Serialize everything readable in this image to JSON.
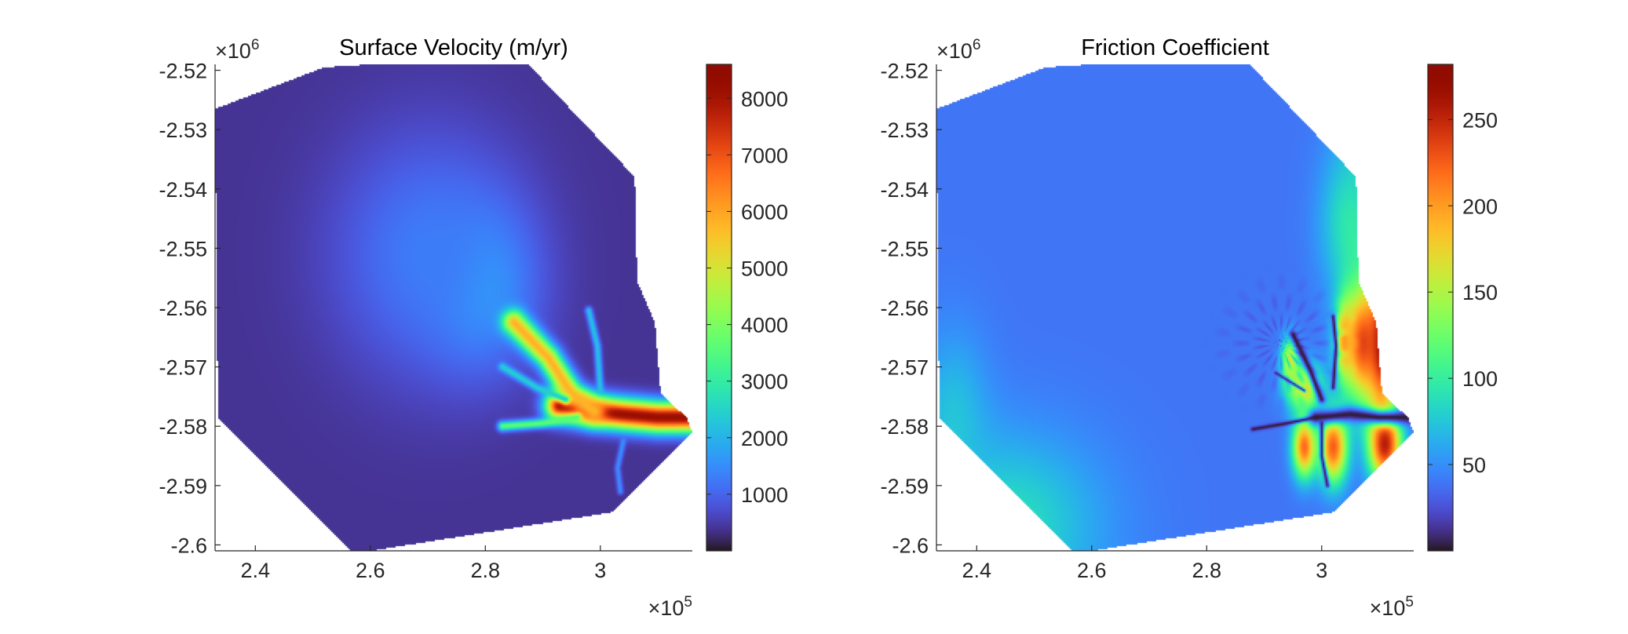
{
  "chart_data": [
    {
      "type": "heatmap",
      "title": "Surface Velocity (m/yr)",
      "x_multiplier_label": "×10",
      "x_multiplier_exponent": "5",
      "y_multiplier_label": "×10",
      "y_multiplier_exponent": "6",
      "xlim": [
        2.33,
        3.16
      ],
      "ylim": [
        -2.601,
        -2.519
      ],
      "xticks": [
        2.4,
        2.6,
        2.8,
        3.0
      ],
      "xtick_labels": [
        "2.4",
        "2.6",
        "2.8",
        "3"
      ],
      "yticks": [
        -2.52,
        -2.53,
        -2.54,
        -2.55,
        -2.56,
        -2.57,
        -2.58,
        -2.59,
        -2.6
      ],
      "ytick_labels": [
        "-2.52",
        "-2.53",
        "-2.54",
        "-2.55",
        "-2.56",
        "-2.57",
        "-2.58",
        "-2.59",
        "-2.6"
      ],
      "colorbar": {
        "limits": [
          0,
          8600
        ],
        "ticks": [
          1000,
          2000,
          3000,
          4000,
          5000,
          6000,
          7000,
          8000
        ],
        "tick_labels": [
          "1000",
          "2000",
          "3000",
          "4000",
          "5000",
          "6000",
          "7000",
          "8000"
        ],
        "colormap": "turbo"
      },
      "background_value": 400,
      "domain_outline": [
        [
          2.33,
          -2.5265
        ],
        [
          2.52,
          -2.5195
        ],
        [
          2.86,
          -2.5175
        ],
        [
          3.06,
          -2.538
        ],
        [
          3.064,
          -2.5555
        ],
        [
          3.095,
          -2.5625
        ],
        [
          3.105,
          -2.5745
        ],
        [
          3.15,
          -2.5785
        ],
        [
          3.16,
          -2.581
        ],
        [
          3.02,
          -2.5945
        ],
        [
          2.57,
          -2.6015
        ],
        [
          2.335,
          -2.5785
        ]
      ],
      "features": [
        {
          "type": "stream",
          "points": [
            [
              2.93,
              -2.5765
            ],
            [
              2.99,
              -2.5775
            ],
            [
              3.04,
              -2.578
            ],
            [
              3.1,
              -2.5785
            ],
            [
              3.16,
              -2.5785
            ]
          ],
          "value": 8200,
          "width": 0.025
        },
        {
          "type": "stream",
          "points": [
            [
              2.85,
              -2.5625
            ],
            [
              2.91,
              -2.5685
            ],
            [
              2.95,
              -2.5745
            ],
            [
              2.99,
              -2.5775
            ]
          ],
          "value": 5800,
          "width": 0.02
        },
        {
          "type": "stream",
          "points": [
            [
              2.83,
              -2.58
            ],
            [
              2.9,
              -2.5795
            ],
            [
              2.96,
              -2.5785
            ]
          ],
          "value": 3600,
          "width": 0.008
        },
        {
          "type": "stream",
          "points": [
            [
              2.83,
              -2.57
            ],
            [
              2.89,
              -2.5735
            ],
            [
              2.94,
              -2.5755
            ]
          ],
          "value": 2400,
          "width": 0.007
        },
        {
          "type": "stream",
          "points": [
            [
              2.98,
              -2.5605
            ],
            [
              2.995,
              -2.5665
            ],
            [
              3.0,
              -2.574
            ]
          ],
          "value": 2200,
          "width": 0.006
        },
        {
          "type": "stream",
          "points": [
            [
              3.04,
              -2.5825
            ],
            [
              3.03,
              -2.587
            ],
            [
              3.035,
              -2.591
            ]
          ],
          "value": 1500,
          "width": 0.005
        },
        {
          "type": "blob",
          "center": [
            2.79,
            -2.556
          ],
          "radius": [
            0.09,
            0.013
          ],
          "value": 2000
        },
        {
          "type": "blob",
          "center": [
            2.7,
            -2.551
          ],
          "radius": [
            0.16,
            0.02
          ],
          "value": 1300
        }
      ]
    },
    {
      "type": "heatmap",
      "title": "Friction Coefficient",
      "x_multiplier_label": "×10",
      "x_multiplier_exponent": "5",
      "y_multiplier_label": "×10",
      "y_multiplier_exponent": "6",
      "xlim": [
        2.33,
        3.16
      ],
      "ylim": [
        -2.601,
        -2.519
      ],
      "xticks": [
        2.4,
        2.6,
        2.8,
        3.0
      ],
      "xtick_labels": [
        "2.4",
        "2.6",
        "2.8",
        "3"
      ],
      "yticks": [
        -2.52,
        -2.53,
        -2.54,
        -2.55,
        -2.56,
        -2.57,
        -2.58,
        -2.59,
        -2.6
      ],
      "ytick_labels": [
        "-2.52",
        "-2.53",
        "-2.54",
        "-2.55",
        "-2.56",
        "-2.57",
        "-2.58",
        "-2.59",
        "-2.6"
      ],
      "colorbar": {
        "limits": [
          0,
          282
        ],
        "ticks": [
          50,
          100,
          150,
          200,
          250
        ],
        "tick_labels": [
          "50",
          "100",
          "150",
          "200",
          "250"
        ],
        "colormap": "turbo"
      },
      "background_value": 40,
      "domain_outline": [
        [
          2.33,
          -2.5265
        ],
        [
          2.52,
          -2.5195
        ],
        [
          2.86,
          -2.5175
        ],
        [
          3.06,
          -2.538
        ],
        [
          3.064,
          -2.5555
        ],
        [
          3.095,
          -2.5625
        ],
        [
          3.105,
          -2.5745
        ],
        [
          3.15,
          -2.5785
        ],
        [
          3.16,
          -2.581
        ],
        [
          3.02,
          -2.5945
        ],
        [
          2.57,
          -2.6015
        ],
        [
          2.335,
          -2.5785
        ]
      ],
      "features": [
        {
          "type": "blob",
          "center": [
            3.1,
            -2.532
          ],
          "radius": [
            0.06,
            0.015
          ],
          "value": 85
        },
        {
          "type": "blob",
          "center": [
            3.05,
            -2.546
          ],
          "radius": [
            0.05,
            0.012
          ],
          "value": 95
        },
        {
          "type": "blob",
          "center": [
            2.45,
            -2.597
          ],
          "radius": [
            0.16,
            0.015
          ],
          "value": 90
        },
        {
          "type": "blob",
          "center": [
            2.36,
            -2.58
          ],
          "radius": [
            0.06,
            0.015
          ],
          "value": 75
        },
        {
          "type": "blob",
          "center": [
            3.07,
            -2.566
          ],
          "radius": [
            0.035,
            0.01
          ],
          "value": 230
        },
        {
          "type": "blob",
          "center": [
            3.105,
            -2.566
          ],
          "radius": [
            0.025,
            0.012
          ],
          "value": 265
        },
        {
          "type": "blob",
          "center": [
            3.11,
            -2.583
          ],
          "radius": [
            0.028,
            0.006
          ],
          "value": 255
        },
        {
          "type": "blob",
          "center": [
            3.02,
            -2.5835
          ],
          "radius": [
            0.025,
            0.006
          ],
          "value": 225
        },
        {
          "type": "blob",
          "center": [
            2.97,
            -2.5835
          ],
          "radius": [
            0.02,
            0.005
          ],
          "value": 220
        },
        {
          "type": "blob",
          "center": [
            2.97,
            -2.5735
          ],
          "radius": [
            0.03,
            0.004
          ],
          "value": 175
        },
        {
          "type": "blob",
          "center": [
            2.945,
            -2.569
          ],
          "radius": [
            0.015,
            0.004
          ],
          "value": 165
        },
        {
          "type": "blob",
          "center": [
            3.04,
            -2.5655
          ],
          "radius": [
            0.015,
            0.006
          ],
          "value": 200
        },
        {
          "type": "stream",
          "points": [
            [
              2.99,
              -2.5785
            ],
            [
              3.05,
              -2.578
            ],
            [
              3.1,
              -2.5785
            ],
            [
              3.16,
              -2.5785
            ]
          ],
          "value": 3,
          "width": 0.013
        },
        {
          "type": "stream",
          "points": [
            [
              2.95,
              -2.5645
            ],
            [
              2.98,
              -2.5705
            ],
            [
              3.0,
              -2.5755
            ]
          ],
          "value": 3,
          "width": 0.007
        },
        {
          "type": "stream",
          "points": [
            [
              2.88,
              -2.5805
            ],
            [
              2.94,
              -2.5795
            ],
            [
              2.99,
              -2.5785
            ]
          ],
          "value": 3,
          "width": 0.004
        },
        {
          "type": "stream",
          "points": [
            [
              3.02,
              -2.5615
            ],
            [
              3.025,
              -2.5665
            ],
            [
              3.02,
              -2.5735
            ]
          ],
          "value": 3,
          "width": 0.004
        },
        {
          "type": "stream",
          "points": [
            [
              3.0,
              -2.5795
            ],
            [
              3.0,
              -2.585
            ],
            [
              3.01,
              -2.59
            ]
          ],
          "value": 5,
          "width": 0.004
        },
        {
          "type": "stream",
          "points": [
            [
              2.92,
              -2.571
            ],
            [
              2.97,
              -2.574
            ]
          ],
          "value": 8,
          "width": 0.003
        },
        {
          "type": "ripples",
          "center": [
            2.93,
            -2.566
          ],
          "radius": 0.14,
          "count": 18,
          "value": 15
        }
      ]
    }
  ]
}
